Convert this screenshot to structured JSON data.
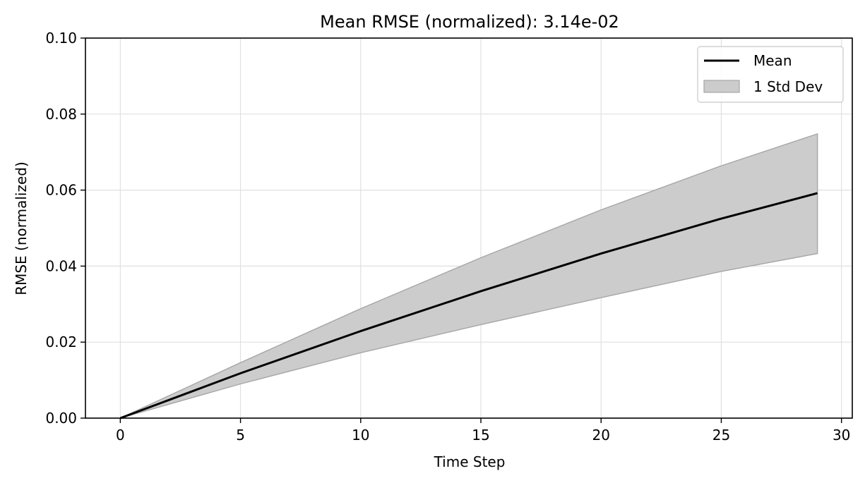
{
  "chart_data": {
    "type": "line",
    "title": "Mean RMSE (normalized): 3.14e-02",
    "xlabel": "Time Step",
    "ylabel": "RMSE (normalized)",
    "xlim": [
      -1.45,
      30.45
    ],
    "ylim": [
      0,
      0.1
    ],
    "xticks": [
      0,
      5,
      10,
      15,
      20,
      25,
      30
    ],
    "yticks": [
      0.0,
      0.02,
      0.04,
      0.06,
      0.08,
      0.1
    ],
    "xtick_labels": [
      "0",
      "5",
      "10",
      "15",
      "20",
      "25",
      "30"
    ],
    "ytick_labels": [
      "0.00",
      "0.02",
      "0.04",
      "0.06",
      "0.08",
      "0.10"
    ],
    "grid": true,
    "legend_position": "top-right",
    "legend": [
      {
        "label": "Mean",
        "kind": "line",
        "color": "#000000"
      },
      {
        "label": "1 Std Dev",
        "kind": "band",
        "color": "#808080"
      }
    ],
    "series": [
      {
        "name": "Mean",
        "x": [
          0,
          5,
          10,
          15,
          20,
          25,
          29
        ],
        "y": [
          0.0,
          0.0118,
          0.0229,
          0.0334,
          0.0433,
          0.0525,
          0.0592
        ]
      },
      {
        "name": "1 Std Dev",
        "x": [
          0,
          5,
          10,
          15,
          20,
          25,
          29
        ],
        "lower": [
          0.0,
          0.009,
          0.0172,
          0.0246,
          0.0317,
          0.0386,
          0.0433
        ],
        "upper": [
          0.0,
          0.0146,
          0.0288,
          0.0422,
          0.0548,
          0.0664,
          0.0748
        ]
      }
    ],
    "colors": {
      "mean_line": "#000000",
      "band_fill": "#cccccc",
      "band_edge": "#a6a6a6",
      "grid": "#e0e0e0"
    }
  }
}
